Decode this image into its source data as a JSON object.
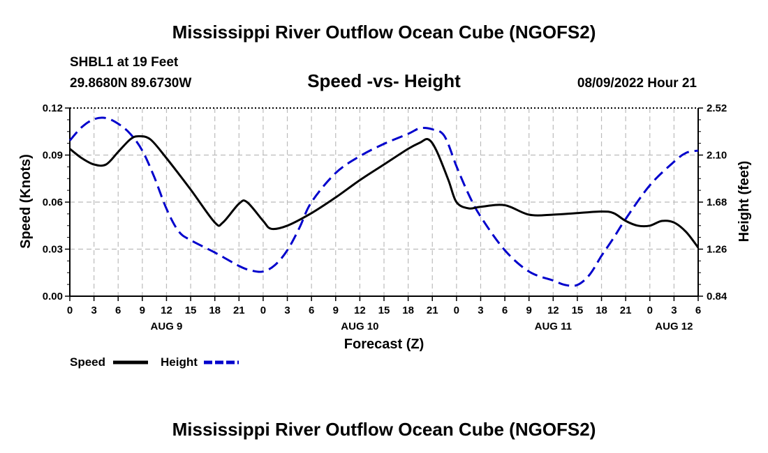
{
  "header": {
    "title": "Mississippi River Outflow Ocean Cube (NGOFS2)",
    "station": "SHBL1 at 19 Feet",
    "coords": "29.8680N  89.6730W",
    "subtitle": "Speed -vs- Height",
    "datetime": "08/09/2022 Hour 21"
  },
  "footer": {
    "title": "Mississippi River Outflow Ocean Cube (NGOFS2)"
  },
  "chart_data": {
    "type": "line",
    "title": "Speed -vs- Height",
    "xlabel": "Forecast (Z)",
    "ylabel": "Speed (Knots)",
    "y2label": "Height (feet)",
    "xlim_hours": [
      0,
      78
    ],
    "ylim": [
      0,
      0.12
    ],
    "y2lim": [
      0.84,
      2.52
    ],
    "yticks": [
      "0.00",
      "0.03",
      "0.06",
      "0.09",
      "0.12"
    ],
    "y2ticks": [
      "0.84",
      "1.26",
      "1.68",
      "2.10",
      "2.52"
    ],
    "xtick_labels": [
      "0",
      "3",
      "6",
      "9",
      "12",
      "15",
      "18",
      "21",
      "0",
      "3",
      "6",
      "9",
      "12",
      "15",
      "18",
      "21",
      "0",
      "3",
      "6",
      "9",
      "12",
      "15",
      "18",
      "21",
      "0",
      "3",
      "6"
    ],
    "date_labels": [
      {
        "label": "AUG 9",
        "hour": 12
      },
      {
        "label": "AUG 10",
        "hour": 36
      },
      {
        "label": "AUG 11",
        "hour": 60
      },
      {
        "label": "AUG 12",
        "hour": 75
      }
    ],
    "grid": true,
    "legend_position": "bottom-left",
    "series": [
      {
        "name": "Speed",
        "axis": "left",
        "color": "#000000",
        "style": "solid",
        "x": [
          0,
          1.5,
          3,
          4.5,
          6,
          7.5,
          8.5,
          10,
          12,
          15,
          18,
          19,
          21,
          22,
          24,
          25,
          27,
          30,
          33,
          36,
          39,
          42,
          43.5,
          44.5,
          45.5,
          47,
          48,
          49.5,
          51,
          54,
          57,
          60,
          63,
          66,
          67.5,
          69,
          70.5,
          72,
          73.5,
          75,
          76.5,
          78
        ],
        "values": [
          0.094,
          0.088,
          0.084,
          0.084,
          0.092,
          0.1,
          0.102,
          0.1,
          0.088,
          0.068,
          0.047,
          0.047,
          0.059,
          0.06,
          0.048,
          0.043,
          0.045,
          0.053,
          0.063,
          0.074,
          0.084,
          0.094,
          0.098,
          0.1,
          0.093,
          0.074,
          0.06,
          0.056,
          0.057,
          0.058,
          0.052,
          0.052,
          0.053,
          0.054,
          0.053,
          0.048,
          0.045,
          0.045,
          0.048,
          0.047,
          0.041,
          0.031
        ]
      },
      {
        "name": "Height",
        "axis": "right",
        "color": "#0000cc",
        "style": "dashed",
        "x": [
          0,
          1.5,
          3,
          4.5,
          6,
          7.5,
          9,
          10.5,
          12,
          13.5,
          15,
          18,
          21,
          22.5,
          24,
          25.5,
          27,
          28.5,
          30,
          33,
          36,
          39,
          42,
          43.5,
          45,
          46.5,
          48,
          49.5,
          51,
          54,
          57,
          60,
          61.5,
          63,
          64.5,
          66,
          67.5,
          69,
          72,
          75,
          76.5,
          78
        ],
        "values": [
          2.23,
          2.35,
          2.42,
          2.43,
          2.38,
          2.29,
          2.14,
          1.9,
          1.62,
          1.42,
          1.34,
          1.23,
          1.11,
          1.07,
          1.06,
          1.12,
          1.25,
          1.45,
          1.68,
          1.94,
          2.09,
          2.2,
          2.29,
          2.34,
          2.33,
          2.27,
          2.0,
          1.75,
          1.55,
          1.25,
          1.06,
          0.98,
          0.94,
          0.94,
          1.03,
          1.2,
          1.36,
          1.53,
          1.83,
          2.04,
          2.12,
          2.14
        ]
      }
    ]
  },
  "legend": {
    "speed_label": "Speed",
    "height_label": "Height"
  }
}
